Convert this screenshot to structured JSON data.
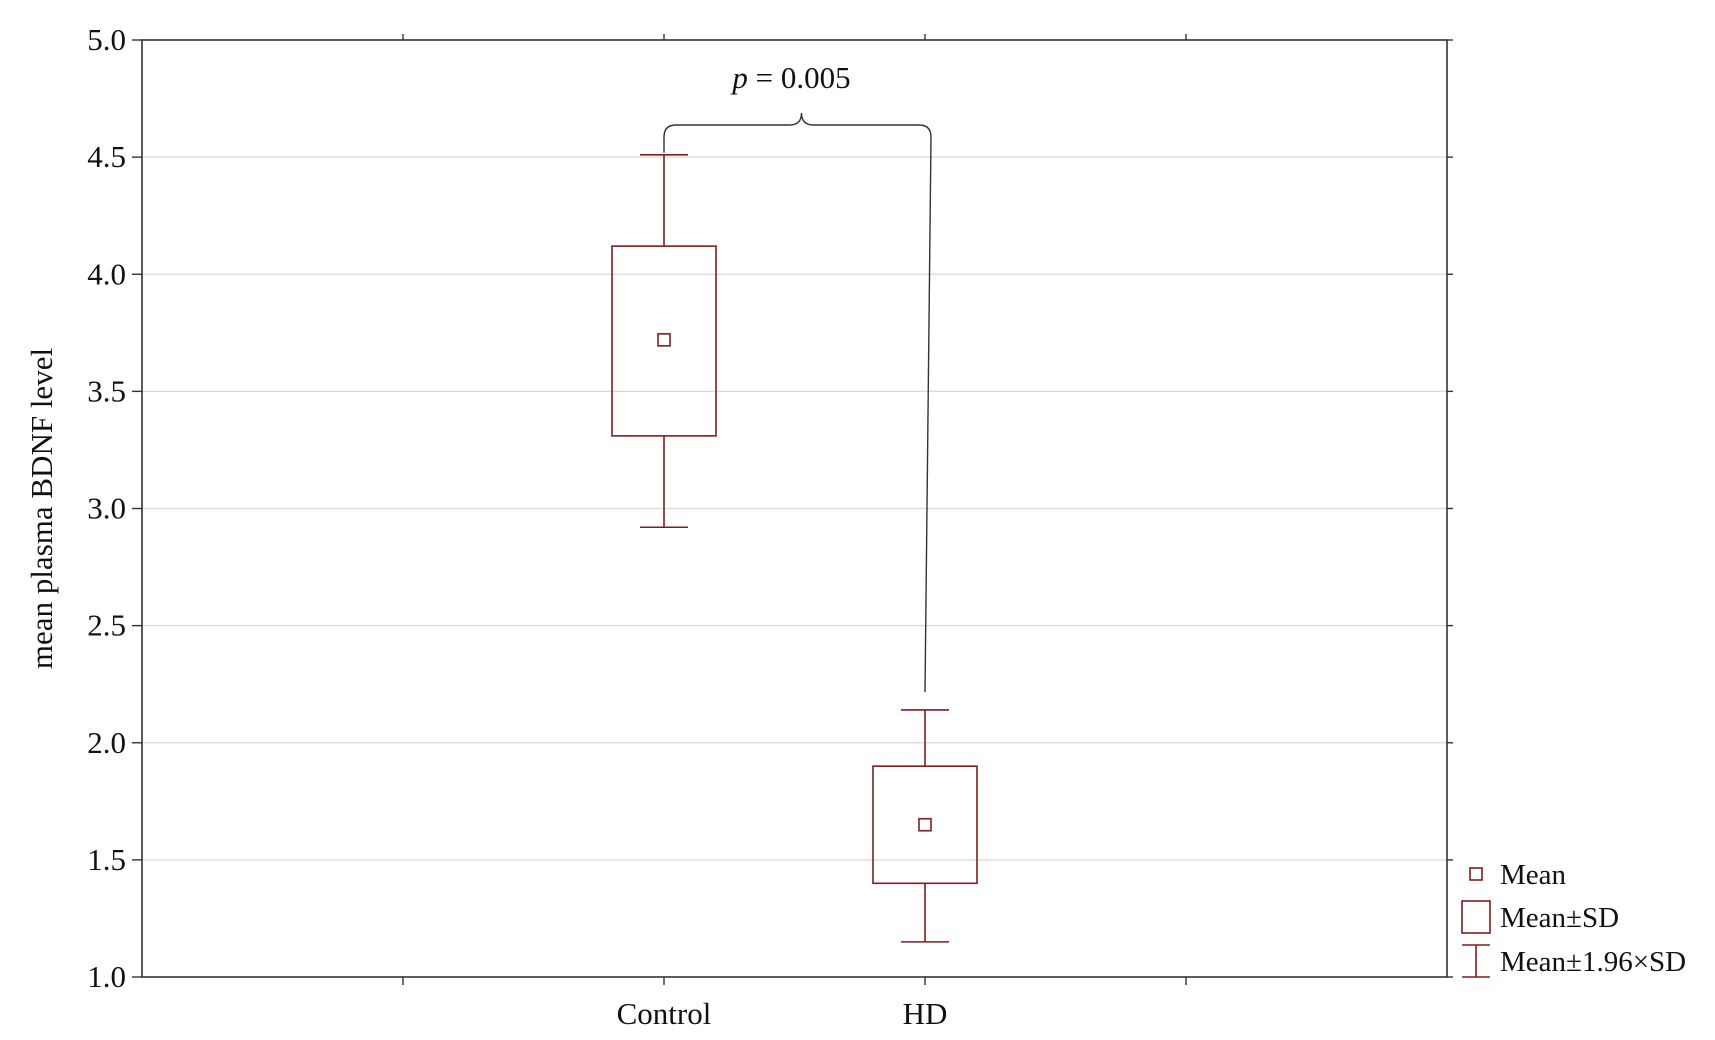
{
  "chart_data": {
    "type": "box",
    "xlabel": "",
    "ylabel": "mean plasma BDNF level",
    "ylim": [
      1.0,
      5.0
    ],
    "yticks": [
      "1.0",
      "1.5",
      "2.0",
      "2.5",
      "3.0",
      "3.5",
      "4.0",
      "4.5",
      "5.0"
    ],
    "categories": [
      "Control",
      "HD"
    ],
    "groups": [
      {
        "name": "Control",
        "mean": 3.72,
        "sd_low": 3.31,
        "sd_high": 4.12,
        "ci_low": 2.92,
        "ci_high": 4.51
      },
      {
        "name": "HD",
        "mean": 1.65,
        "sd_low": 1.4,
        "sd_high": 1.9,
        "ci_low": 1.15,
        "ci_high": 2.14
      }
    ],
    "annotation": {
      "symbol": "p",
      "value": " = 0.005",
      "between": [
        "Control",
        "HD"
      ]
    },
    "legend": {
      "position": "bottom-right outside",
      "entries": [
        "Mean",
        "Mean±SD",
        "Mean±1.96×SD"
      ]
    },
    "grid": "horizontal",
    "colors": {
      "series": "#7b1f1f",
      "axis": "#333333",
      "grid": "#d9d9d9",
      "bracket": "#333333"
    }
  }
}
